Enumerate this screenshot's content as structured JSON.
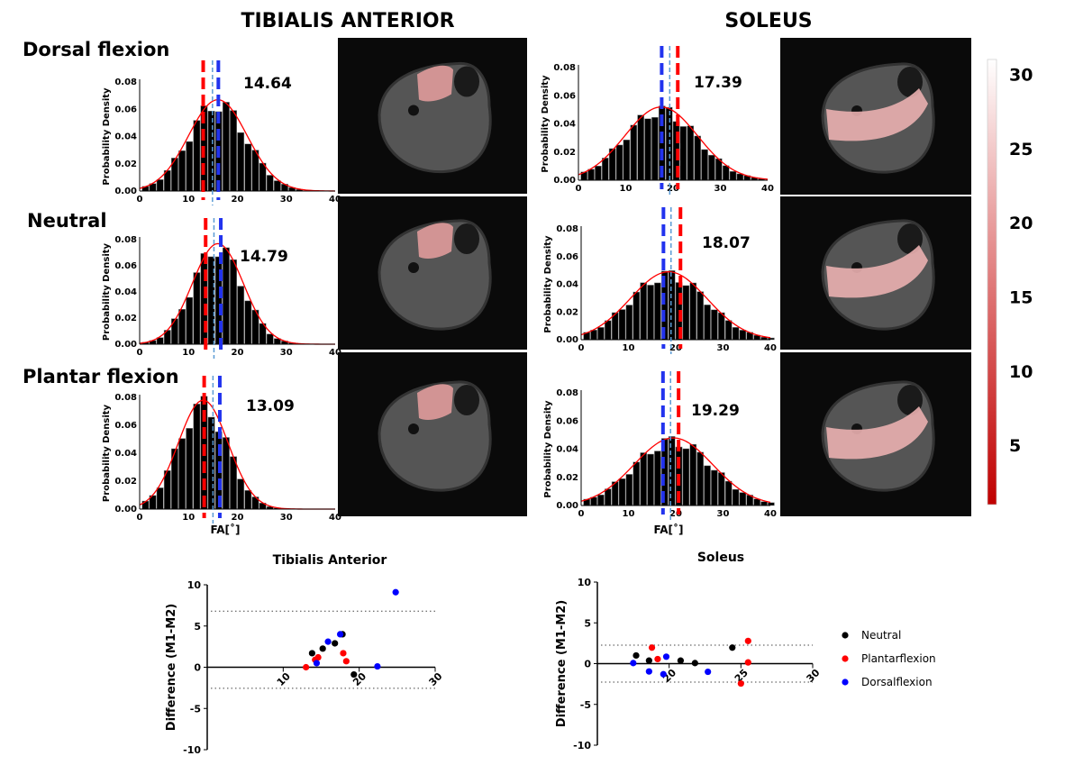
{
  "headings": {
    "left": "TIBIALIS ANTERIOR",
    "right": "SOLEUS"
  },
  "row_labels": [
    "Dorsal flexion",
    "Neutral",
    "Plantar flexion"
  ],
  "histogram_axis": {
    "ylabel": "Probability Density",
    "xlabel": "FA[˚]",
    "yticks": [
      "0.00",
      "0.02",
      "0.04",
      "0.06",
      "0.08"
    ],
    "xticks": [
      "0",
      "10",
      "20",
      "30",
      "40"
    ]
  },
  "colorbar": {
    "ticks": [
      "30",
      "25",
      "20",
      "15",
      "10",
      "5"
    ],
    "range": [
      1,
      31
    ],
    "color_low": "#c00000",
    "color_high": "#ffffff"
  },
  "colors": {
    "fit": "#ff0000",
    "dash_red": "#ff0000",
    "dash_blue": "#2233ee",
    "dash_light": "#5b9bd5",
    "neutral": "#000000",
    "plantar": "#ff0000",
    "dorsal": "#0000ff"
  },
  "chart_data": [
    {
      "type": "bar",
      "muscle": "Tibialis Anterior",
      "position": "Dorsal flexion",
      "value_label": "14.64",
      "fit": {
        "mean": 16,
        "sd": 6.0,
        "peak": 0.067
      },
      "dashed_lines": {
        "red": 13.0,
        "light_blue": 14.9,
        "blue": 16.1
      },
      "xlim": [
        0,
        40
      ],
      "ylim": [
        0,
        0.08
      ],
      "bin_width": 1.5
    },
    {
      "type": "bar",
      "muscle": "Tibialis Anterior",
      "position": "Neutral",
      "value_label": "14.79",
      "fit": {
        "mean": 16,
        "sd": 5.2,
        "peak": 0.077
      },
      "dashed_lines": {
        "red": 13.5,
        "light_blue": 15.2,
        "blue": 16.6
      },
      "xlim": [
        0,
        40
      ],
      "ylim": [
        0,
        0.08
      ],
      "bin_width": 1.5
    },
    {
      "type": "bar",
      "muscle": "Tibialis Anterior",
      "position": "Plantar flexion",
      "value_label": "13.09",
      "fit": {
        "mean": 13,
        "sd": 5.1,
        "peak": 0.078
      },
      "dashed_lines": {
        "red": 13.2,
        "light_blue": 15.0,
        "blue": 16.4
      },
      "xlim": [
        0,
        40
      ],
      "ylim": [
        0,
        0.08
      ],
      "bin_width": 1.5
    },
    {
      "type": "bar",
      "muscle": "Soleus",
      "position": "Dorsal flexion",
      "value_label": "17.39",
      "fit": {
        "mean": 17.5,
        "sd": 7.7,
        "peak": 0.052
      },
      "dashed_lines": {
        "red": 21.0,
        "light_blue": 19.3,
        "blue": 17.6
      },
      "xlim": [
        0,
        40
      ],
      "ylim": [
        0,
        0.08
      ],
      "bin_width": 1.5
    },
    {
      "type": "bar",
      "muscle": "Soleus",
      "position": "Neutral",
      "value_label": "18.07",
      "fit": {
        "mean": 18.5,
        "sd": 8.1,
        "peak": 0.049
      },
      "dashed_lines": {
        "red": 21.0,
        "light_blue": 19.0,
        "blue": 17.4
      },
      "xlim": [
        0,
        40
      ],
      "ylim": [
        0,
        0.08
      ],
      "bin_width": 1.5
    },
    {
      "type": "bar",
      "muscle": "Soleus",
      "position": "Plantar flexion",
      "value_label": "19.29",
      "fit": {
        "mean": 19.5,
        "sd": 8.3,
        "peak": 0.048
      },
      "dashed_lines": {
        "red": 20.6,
        "light_blue": 18.9,
        "blue": 17.3
      },
      "xlim": [
        0,
        40
      ],
      "ylim": [
        0,
        0.08
      ],
      "bin_width": 1.5
    },
    {
      "type": "scatter",
      "title": "Tibialis Anterior",
      "ylabel": "Difference (M1-M2)",
      "xlim": [
        0,
        30
      ],
      "ylim": [
        -10,
        10
      ],
      "xticks": [
        "10",
        "20",
        "30"
      ],
      "yticks": [
        "10",
        "5",
        "0",
        "-5",
        "-10"
      ],
      "limits_of_agreement": [
        6.8,
        -2.55
      ],
      "series": [
        {
          "name": "Neutral",
          "color": "#000000",
          "points": [
            [
              13.8,
              1.7
            ],
            [
              15.2,
              2.26
            ],
            [
              16.8,
              2.9
            ],
            [
              17.8,
              4.0
            ],
            [
              19.3,
              -0.88
            ]
          ]
        },
        {
          "name": "Plantarflexion",
          "color": "#ff0000",
          "points": [
            [
              13.0,
              0.0
            ],
            [
              14.2,
              0.9
            ],
            [
              14.6,
              1.2
            ],
            [
              17.9,
              1.7
            ],
            [
              18.3,
              0.73
            ]
          ]
        },
        {
          "name": "Dorsalflexion",
          "color": "#0000ff",
          "points": [
            [
              14.4,
              0.5
            ],
            [
              15.9,
              3.1
            ],
            [
              17.5,
              4.0
            ],
            [
              22.4,
              0.1
            ],
            [
              24.8,
              9.1
            ]
          ]
        }
      ]
    },
    {
      "type": "scatter",
      "title": "Soleus",
      "ylabel": "Difference (M1-M2)",
      "xlim": [
        15,
        30
      ],
      "ylim": [
        -10,
        10
      ],
      "xticks": [
        "20",
        "25",
        "30"
      ],
      "yticks": [
        "10",
        "5",
        "0",
        "-5",
        "-10"
      ],
      "limits_of_agreement": [
        2.26,
        -2.26
      ],
      "legend": "right",
      "series": [
        {
          "name": "Neutral",
          "color": "#000000",
          "points": [
            [
              17.7,
              1.0
            ],
            [
              18.6,
              0.37
            ],
            [
              20.8,
              0.37
            ],
            [
              21.8,
              0.07
            ],
            [
              24.4,
              1.96
            ]
          ]
        },
        {
          "name": "Plantarflexion",
          "color": "#ff0000",
          "points": [
            [
              18.8,
              1.96
            ],
            [
              19.2,
              0.56
            ],
            [
              25.5,
              2.78
            ],
            [
              25.5,
              0.15
            ],
            [
              25.0,
              -2.44
            ]
          ]
        },
        {
          "name": "Dorsalflexion",
          "color": "#0000ff",
          "points": [
            [
              17.5,
              0.07
            ],
            [
              18.6,
              -0.96
            ],
            [
              19.6,
              -1.3
            ],
            [
              19.8,
              0.85
            ],
            [
              22.7,
              -1.0
            ]
          ]
        }
      ]
    }
  ]
}
